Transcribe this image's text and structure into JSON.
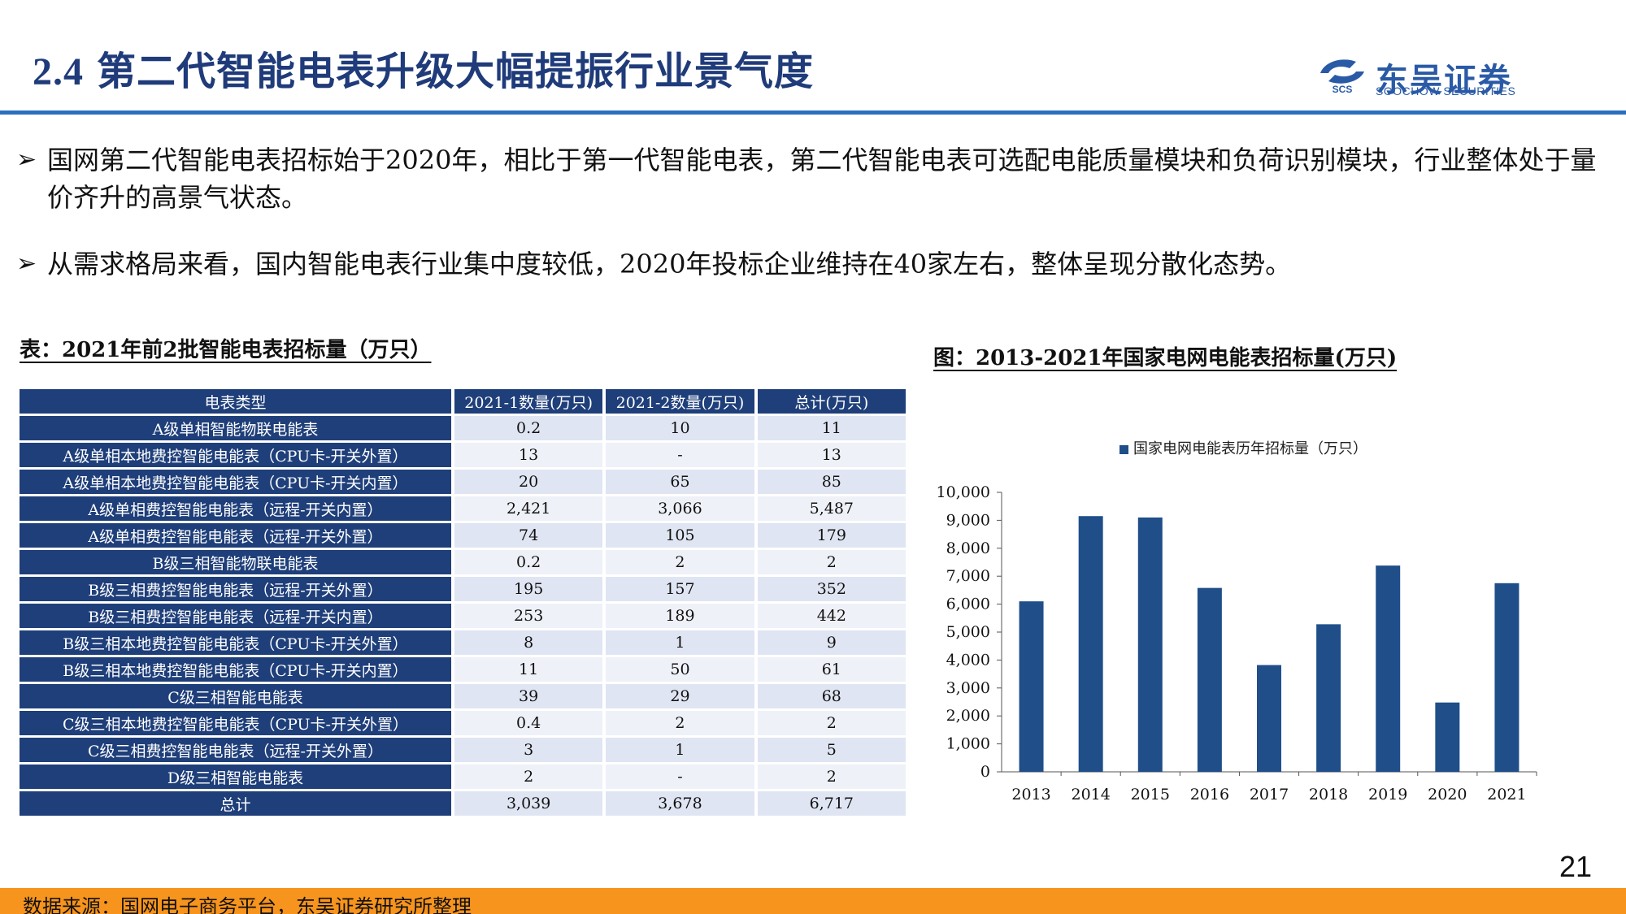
{
  "header": {
    "section_num": "2.4",
    "title": "第二代智能电表升级大幅提振行业景气度",
    "logo_name": "东吴证券",
    "logo_sub": "SOOCHOW SECURITIES",
    "logo_mark_text": "SCS"
  },
  "bullets": [
    "国网第二代智能电表招标始于2020年，相比于第一代智能电表，第二代智能电表可选配电能质量模块和负荷识别模块，行业整体处于量价齐升的高景气状态。",
    "从需求格局来看，国内智能电表行业集中度较低，2020年投标企业维持在40家左右，整体呈现分散化态势。"
  ],
  "table": {
    "caption": "表：2021年前2批智能电表招标量（万只）",
    "headers": [
      "电表类型",
      "2021-1数量(万只)",
      "2021-2数量(万只)",
      "总计(万只)"
    ],
    "rows": [
      [
        "A级单相智能物联电能表",
        "0.2",
        "10",
        "11"
      ],
      [
        "A级单相本地费控智能电能表（CPU卡-开关外置）",
        "13",
        "-",
        "13"
      ],
      [
        "A级单相本地费控智能电能表（CPU卡-开关内置）",
        "20",
        "65",
        "85"
      ],
      [
        "A级单相费控智能电能表（远程-开关内置）",
        "2,421",
        "3,066",
        "5,487"
      ],
      [
        "A级单相费控智能电能表（远程-开关外置）",
        "74",
        "105",
        "179"
      ],
      [
        "B级三相智能物联电能表",
        "0.2",
        "2",
        "2"
      ],
      [
        "B级三相费控智能电能表（远程-开关外置）",
        "195",
        "157",
        "352"
      ],
      [
        "B级三相费控智能电能表（远程-开关内置）",
        "253",
        "189",
        "442"
      ],
      [
        "B级三相本地费控智能电能表（CPU卡-开关外置）",
        "8",
        "1",
        "9"
      ],
      [
        "B级三相本地费控智能电能表（CPU卡-开关内置）",
        "11",
        "50",
        "61"
      ],
      [
        "C级三相智能电能表",
        "39",
        "29",
        "68"
      ],
      [
        "C级三相本地费控智能电能表（CPU卡-开关外置）",
        "0.4",
        "2",
        "2"
      ],
      [
        "C级三相费控智能电能表（远程-开关外置）",
        "3",
        "1",
        "5"
      ],
      [
        "D级三相智能电能表",
        "2",
        "-",
        "2"
      ]
    ],
    "total": [
      "总计",
      "3,039",
      "3,678",
      "6,717"
    ]
  },
  "chart_caption": "图：2013-2021年国家电网电能表招标量(万只)",
  "chart_data": {
    "type": "bar",
    "title": "",
    "categories": [
      "2013",
      "2014",
      "2015",
      "2016",
      "2017",
      "2018",
      "2019",
      "2020",
      "2021"
    ],
    "series": [
      {
        "name": "国家电网电能表历年招标量（万只）",
        "values": [
          6100,
          9150,
          9100,
          6580,
          3820,
          5280,
          7380,
          2480,
          6750
        ]
      }
    ],
    "ylim": [
      0,
      10000
    ],
    "yticks": [
      0,
      1000,
      2000,
      3000,
      4000,
      5000,
      6000,
      7000,
      8000,
      9000,
      10000
    ],
    "ytick_labels": [
      "0",
      "1,000",
      "2,000",
      "3,000",
      "4,000",
      "5,000",
      "6,000",
      "7,000",
      "8,000",
      "9,000",
      "10,000"
    ],
    "grid": false,
    "legend_position": "top",
    "bar_color": "#1f4e89"
  },
  "page_number": "21",
  "footer": "数据来源：国网电子商务平台，东吴证券研究所整理"
}
